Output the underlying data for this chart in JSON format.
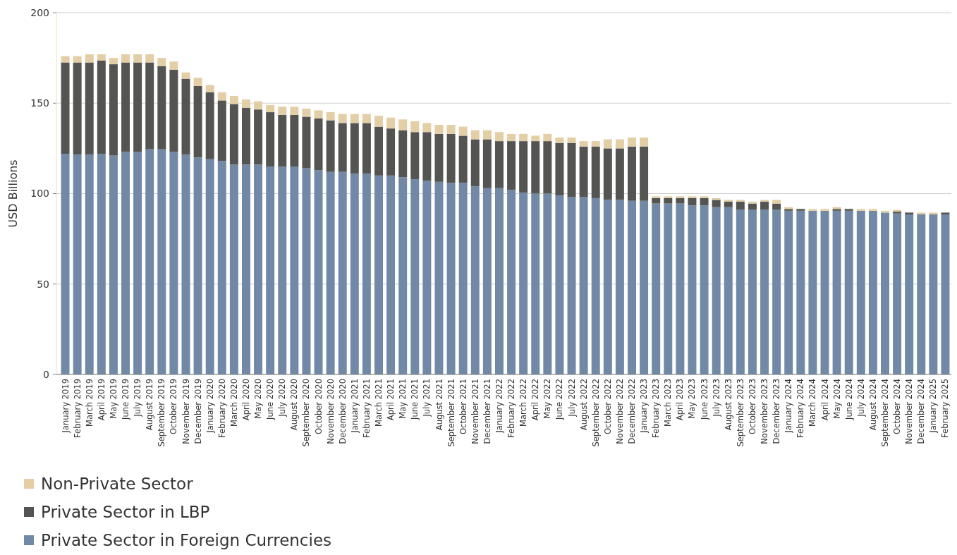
{
  "chart_data": {
    "type": "bar",
    "stacked": true,
    "ylabel": "USD Billions",
    "categories": [
      "January 2019",
      "February 2019",
      "March 2019",
      "April 2019",
      "May 2019",
      "June 2019",
      "July 2019",
      "August 2019",
      "September 2019",
      "October 2019",
      "November 2019",
      "December 2019",
      "January 2020",
      "February 2020",
      "March 2020",
      "April 2020",
      "May 2020",
      "June 2020",
      "July 2020",
      "August 2020",
      "September 2020",
      "October 2020",
      "November 2020",
      "December 2020",
      "January 2021",
      "February 2021",
      "March 2021",
      "April 2021",
      "May 2021",
      "June 2021",
      "July 2021",
      "August 2021",
      "September 2021",
      "October 2021",
      "November 2021",
      "December 2021",
      "January 2022",
      "February 2022",
      "March 2022",
      "April 2022",
      "May 2022",
      "June 2022",
      "July 2022",
      "August 2022",
      "September 2022",
      "October 2022",
      "November 2022",
      "December 2022",
      "January 2023",
      "February 2023",
      "March 2023",
      "April 2023",
      "May 2023",
      "June 2023",
      "July 2023",
      "August 2023",
      "September 2023",
      "October 2023",
      "November 2023",
      "December 2023",
      "January 2024",
      "February 2024",
      "March 2024",
      "April 2024",
      "May 2024",
      "June 2024",
      "July 2024",
      "August 2024",
      "September 2024",
      "October 2024",
      "November 2024",
      "December 2024",
      "January 2025",
      "February 2025"
    ],
    "series": [
      {
        "name": "Private Sector in Foreign Currencies",
        "color": "#7189a6",
        "values": [
          122,
          121.5,
          121.5,
          122,
          121,
          123,
          123,
          124.5,
          124.5,
          123,
          121.5,
          120,
          119,
          118,
          116,
          116,
          116,
          115,
          115,
          115,
          114,
          113,
          112,
          112,
          111,
          111,
          110,
          110,
          109,
          108,
          107,
          106.5,
          106,
          106,
          104,
          103,
          103,
          102,
          100.5,
          100,
          100,
          99,
          98,
          98,
          97.5,
          96.5,
          96.5,
          96,
          96,
          94.5,
          94.5,
          94.5,
          93.5,
          93.5,
          92.5,
          92.5,
          91,
          91,
          91,
          91,
          90.5,
          90.5,
          90.5,
          90.5,
          90.5,
          90.5,
          90.5,
          90.5,
          89.5,
          89,
          88.5,
          88.5,
          88.5,
          88.5
        ]
      },
      {
        "name": "Private Sector in LBP",
        "color": "#545452",
        "values": [
          50.5,
          51,
          51,
          51.5,
          50.5,
          49.5,
          49.5,
          48,
          46,
          45.5,
          42,
          39.5,
          37,
          33.5,
          33.5,
          31.5,
          30.5,
          30,
          28.5,
          28.5,
          28.5,
          28.5,
          28.5,
          27,
          28,
          28,
          27,
          26,
          26,
          26,
          27,
          26.5,
          27,
          26,
          26,
          27,
          26,
          27,
          28.5,
          29,
          29,
          29,
          30,
          28,
          28.5,
          28.5,
          28.5,
          30,
          30,
          3,
          3,
          3,
          4,
          4,
          4,
          3,
          4.5,
          3.5,
          4.5,
          3.5,
          1,
          1,
          0,
          0,
          1,
          1,
          0,
          0,
          0,
          1,
          1,
          0,
          0,
          1
        ]
      },
      {
        "name": "Non-Private Sector",
        "color": "#e3cea6",
        "values": [
          3.5,
          3.5,
          4.5,
          3.5,
          3.5,
          4.5,
          4.5,
          4.5,
          4.5,
          4.5,
          3.5,
          4.5,
          4,
          4.5,
          4.5,
          4.5,
          4.5,
          4,
          4.5,
          4.5,
          4.5,
          4.5,
          4.5,
          5,
          5,
          5,
          6,
          6,
          6,
          6,
          5,
          5,
          5,
          5,
          5,
          5,
          5,
          4,
          4,
          3,
          4,
          3,
          3,
          3,
          3,
          5,
          5,
          5,
          5,
          1,
          1,
          1,
          1,
          1,
          1,
          1,
          1,
          1,
          1,
          2,
          1,
          0,
          1,
          1,
          1,
          0,
          1,
          1,
          1,
          1,
          0,
          1,
          1,
          0
        ]
      }
    ],
    "ylim": [
      0,
      200
    ],
    "yticks": [
      0,
      50,
      100,
      150,
      200
    ],
    "grid": "y",
    "legend": "bottom left"
  }
}
